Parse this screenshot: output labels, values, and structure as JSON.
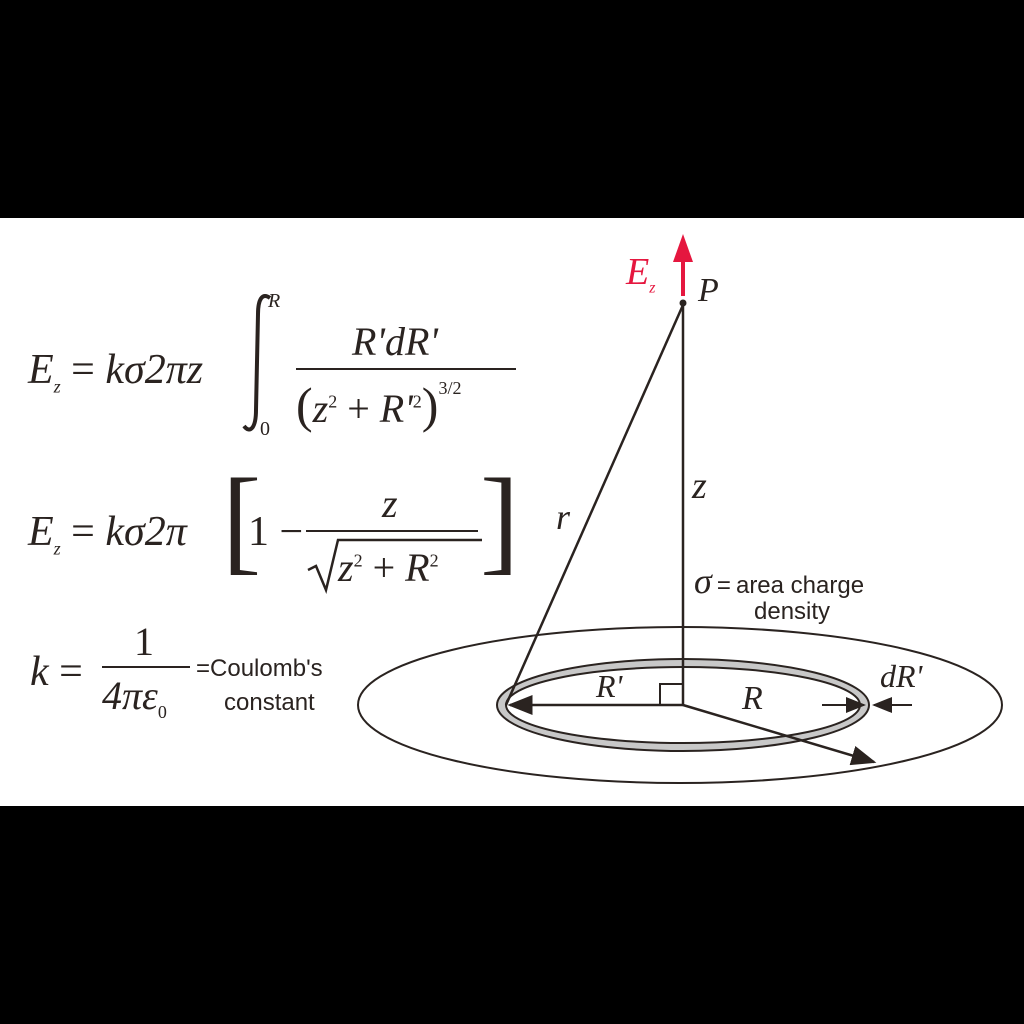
{
  "eq1": {
    "lhs": "E",
    "lhs_sub": "z",
    "eq": "=",
    "factor": "kσ2πz",
    "int_upper": "R",
    "int_lower": "0",
    "numerator": "R'dR'",
    "den_open": "(",
    "den_z": "z",
    "den_z_sup": "2",
    "den_plus": "+",
    "den_r": "R'",
    "den_r_sup": "2",
    "den_close": ")",
    "den_exp": "3/2"
  },
  "eq2": {
    "lhs": "E",
    "lhs_sub": "z",
    "eq": "=",
    "factor": "kσ2π",
    "lbracket": "[",
    "one_minus": "1 −",
    "numerator": "z",
    "rad_z": "z",
    "rad_z_sup": "2",
    "rad_plus": "+",
    "rad_r": "R",
    "rad_r_sup": "2",
    "rbracket": "]"
  },
  "eq3": {
    "lhs": "k",
    "eq": "=",
    "numerator": "1",
    "denominator": "4πε",
    "den_sub": "0",
    "note_eq": "=",
    "note_line1": "Coulomb's",
    "note_line2": "constant"
  },
  "diagram": {
    "field_label": "E",
    "field_label_sub": "z",
    "point_label": "P",
    "height_label": "z",
    "slant_label": "r",
    "sigma_symbol": "σ",
    "sigma_eq": "=",
    "sigma_line1": "area charge",
    "sigma_line2": "density",
    "ring_radius_label": "R'",
    "disk_radius_label": "R",
    "ring_width_label": "dR'",
    "colors": {
      "field": "#e5173f",
      "ink": "#2a2320",
      "ring_fill": "#c8c8c8"
    }
  }
}
